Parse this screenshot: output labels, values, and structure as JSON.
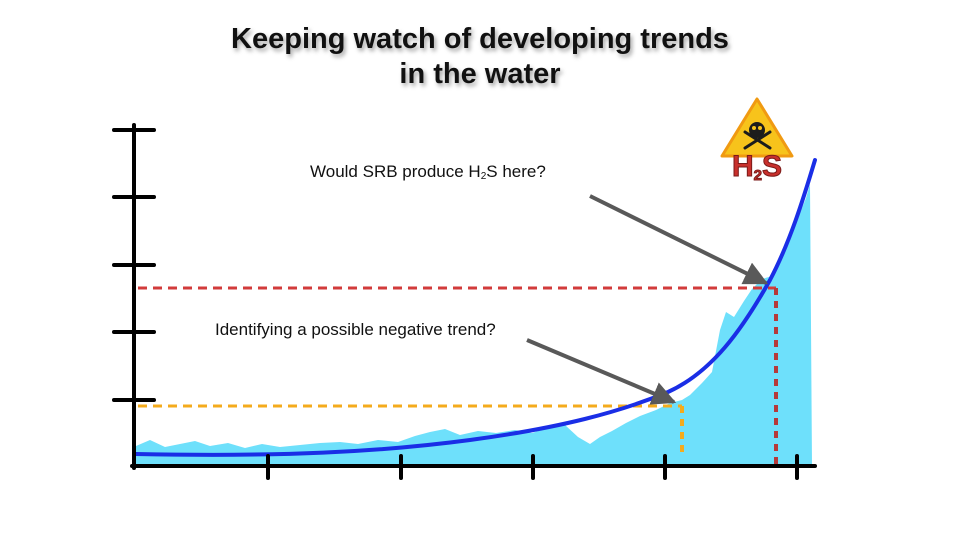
{
  "title": {
    "line1": "Keeping watch of developing trends",
    "line2": "in the water"
  },
  "callouts": {
    "top": {
      "before": "Would SRB produce H",
      "sub": "2",
      "after": "S here?"
    },
    "bottom": "Identifying a possible negative trend?"
  },
  "hazard_sign": {
    "icon": "skull-crossbones-warning-icon",
    "label_main": "H",
    "label_sub": "2",
    "label_end": "S"
  },
  "colors": {
    "curve": "#1a2ee6",
    "area": "#6ee0fb",
    "threshold_high": "#d23b3b",
    "threshold_low": "#f4ab1c",
    "arrow": "#595959",
    "axis": "#000000"
  }
}
